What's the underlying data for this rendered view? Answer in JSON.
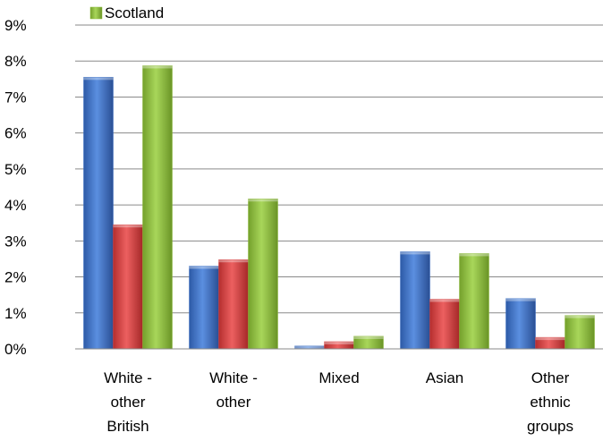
{
  "chart_data": {
    "type": "bar",
    "categories": [
      [
        "White -",
        "other",
        "British"
      ],
      [
        "White -",
        "other"
      ],
      [
        "Mixed"
      ],
      [
        "Asian"
      ],
      [
        "Other",
        "ethnic",
        "groups"
      ]
    ],
    "series": [
      {
        "values": [
          7.55,
          2.3,
          0.08,
          2.7,
          1.4
        ],
        "color": "#3a6fc4"
      },
      {
        "values": [
          3.45,
          2.48,
          0.2,
          1.38,
          0.32
        ],
        "color": "#d43f3f"
      },
      {
        "name": "Scotland",
        "values": [
          7.87,
          4.17,
          0.35,
          2.65,
          0.93
        ],
        "color": "#8cba3a"
      }
    ],
    "y_ticks": [
      "0%",
      "1%",
      "2%",
      "3%",
      "4%",
      "5%",
      "6%",
      "7%",
      "8%",
      "9%"
    ],
    "ylim": [
      0,
      9
    ],
    "grid": true,
    "legend_position": "top-left"
  }
}
